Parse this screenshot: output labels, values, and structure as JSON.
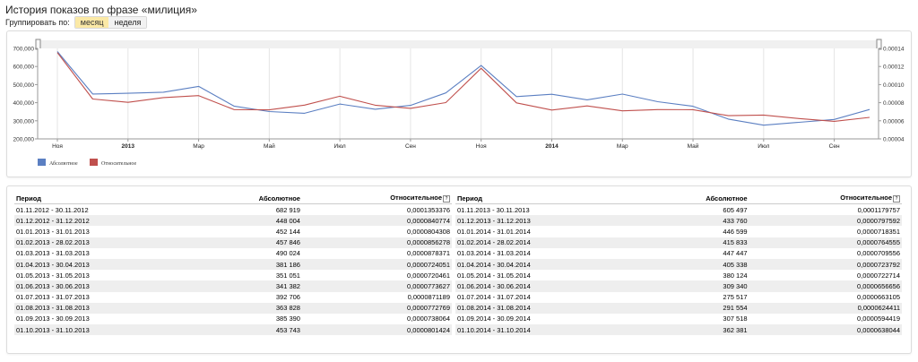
{
  "page": {
    "title": "История показов по фразе «милиция»",
    "group_label": "Группировать по:",
    "group_options": [
      "месяц",
      "неделя"
    ],
    "group_selected": "месяц"
  },
  "colors": {
    "absolute": "#5b7fc2",
    "relative": "#c0504d"
  },
  "chart_data": {
    "type": "line",
    "x": [
      "01.11.2012",
      "01.12.2012",
      "01.01.2013",
      "01.02.2013",
      "01.03.2013",
      "01.04.2013",
      "01.05.2013",
      "01.06.2013",
      "01.07.2013",
      "01.08.2013",
      "01.09.2013",
      "01.10.2013",
      "01.11.2013",
      "01.12.2013",
      "01.01.2014",
      "01.02.2014",
      "01.03.2014",
      "01.04.2014",
      "01.05.2014",
      "01.06.2014",
      "01.07.2014",
      "01.08.2014",
      "01.09.2014",
      "01.10.2014"
    ],
    "x_tick_labels": [
      "Ноя",
      "2013",
      "Мар",
      "Май",
      "Июл",
      "Сен",
      "Ноя",
      "2014",
      "Мар",
      "Май",
      "Июл",
      "Сен"
    ],
    "x_tick_bold": [
      false,
      true,
      false,
      false,
      false,
      false,
      false,
      true,
      false,
      false,
      false,
      false
    ],
    "y_left_ticks": [
      "700,000",
      "600,000",
      "500,000",
      "400,000",
      "300,000",
      "200,000"
    ],
    "y_right_ticks": [
      "0.00014",
      "0.00012",
      "0.00010",
      "0.00008",
      "0.00006",
      "0.00004"
    ],
    "ylim_left": [
      200000,
      700000
    ],
    "ylim_right": [
      4e-05,
      0.00014
    ],
    "series": [
      {
        "name": "Абсолютное",
        "axis": "left",
        "values": [
          682919,
          448004,
          452144,
          457846,
          490024,
          381186,
          351051,
          341382,
          392706,
          363828,
          385390,
          453743,
          605497,
          433760,
          446599,
          415833,
          447447,
          405338,
          380124,
          309340,
          275517,
          291554,
          307518,
          362381
        ]
      },
      {
        "name": "Относительное",
        "axis": "right",
        "values": [
          0.0001353376,
          8.40774e-05,
          8.04308e-05,
          8.56278e-05,
          8.78371e-05,
          7.24051e-05,
          7.20461e-05,
          7.73627e-05,
          8.71189e-05,
          7.72769e-05,
          7.38064e-05,
          8.01424e-05,
          0.0001179757,
          7.97592e-05,
          7.18351e-05,
          7.64555e-05,
          7.09556e-05,
          7.23792e-05,
          7.22714e-05,
          6.56656e-05,
          6.63105e-05,
          6.24411e-05,
          5.94419e-05,
          6.38044e-05
        ]
      }
    ],
    "legend": "bottom-left",
    "grid": true
  },
  "table": {
    "headers": {
      "period": "Период",
      "absolute": "Абсолютное",
      "relative": "Относительное",
      "help": "?"
    },
    "left": [
      [
        "01.11.2012 - 30.11.2012",
        "682 919",
        "0,0001353376"
      ],
      [
        "01.12.2012 - 31.12.2012",
        "448 004",
        "0,0000840774"
      ],
      [
        "01.01.2013 - 31.01.2013",
        "452 144",
        "0,0000804308"
      ],
      [
        "01.02.2013 - 28.02.2013",
        "457 846",
        "0,0000856278"
      ],
      [
        "01.03.2013 - 31.03.2013",
        "490 024",
        "0,0000878371"
      ],
      [
        "01.04.2013 - 30.04.2013",
        "381 186",
        "0,0000724051"
      ],
      [
        "01.05.2013 - 31.05.2013",
        "351 051",
        "0,0000720461"
      ],
      [
        "01.06.2013 - 30.06.2013",
        "341 382",
        "0,0000773627"
      ],
      [
        "01.07.2013 - 31.07.2013",
        "392 706",
        "0,0000871189"
      ],
      [
        "01.08.2013 - 31.08.2013",
        "363 828",
        "0,0000772769"
      ],
      [
        "01.09.2013 - 30.09.2013",
        "385 390",
        "0,0000738064"
      ],
      [
        "01.10.2013 - 31.10.2013",
        "453 743",
        "0,0000801424"
      ]
    ],
    "right": [
      [
        "01.11.2013 - 30.11.2013",
        "605 497",
        "0,0001179757"
      ],
      [
        "01.12.2013 - 31.12.2013",
        "433 760",
        "0,0000797592"
      ],
      [
        "01.01.2014 - 31.01.2014",
        "446 599",
        "0,0000718351"
      ],
      [
        "01.02.2014 - 28.02.2014",
        "415 833",
        "0,0000764555"
      ],
      [
        "01.03.2014 - 31.03.2014",
        "447 447",
        "0,0000709556"
      ],
      [
        "01.04.2014 - 30.04.2014",
        "405 338",
        "0,0000723792"
      ],
      [
        "01.05.2014 - 31.05.2014",
        "380 124",
        "0,0000722714"
      ],
      [
        "01.06.2014 - 30.06.2014",
        "309 340",
        "0,0000656656"
      ],
      [
        "01.07.2014 - 31.07.2014",
        "275 517",
        "0,0000663105"
      ],
      [
        "01.08.2014 - 31.08.2014",
        "291 554",
        "0,0000624411"
      ],
      [
        "01.09.2014 - 30.09.2014",
        "307 518",
        "0,0000594419"
      ],
      [
        "01.10.2014 - 31.10.2014",
        "362 381",
        "0,0000638044"
      ]
    ]
  }
}
